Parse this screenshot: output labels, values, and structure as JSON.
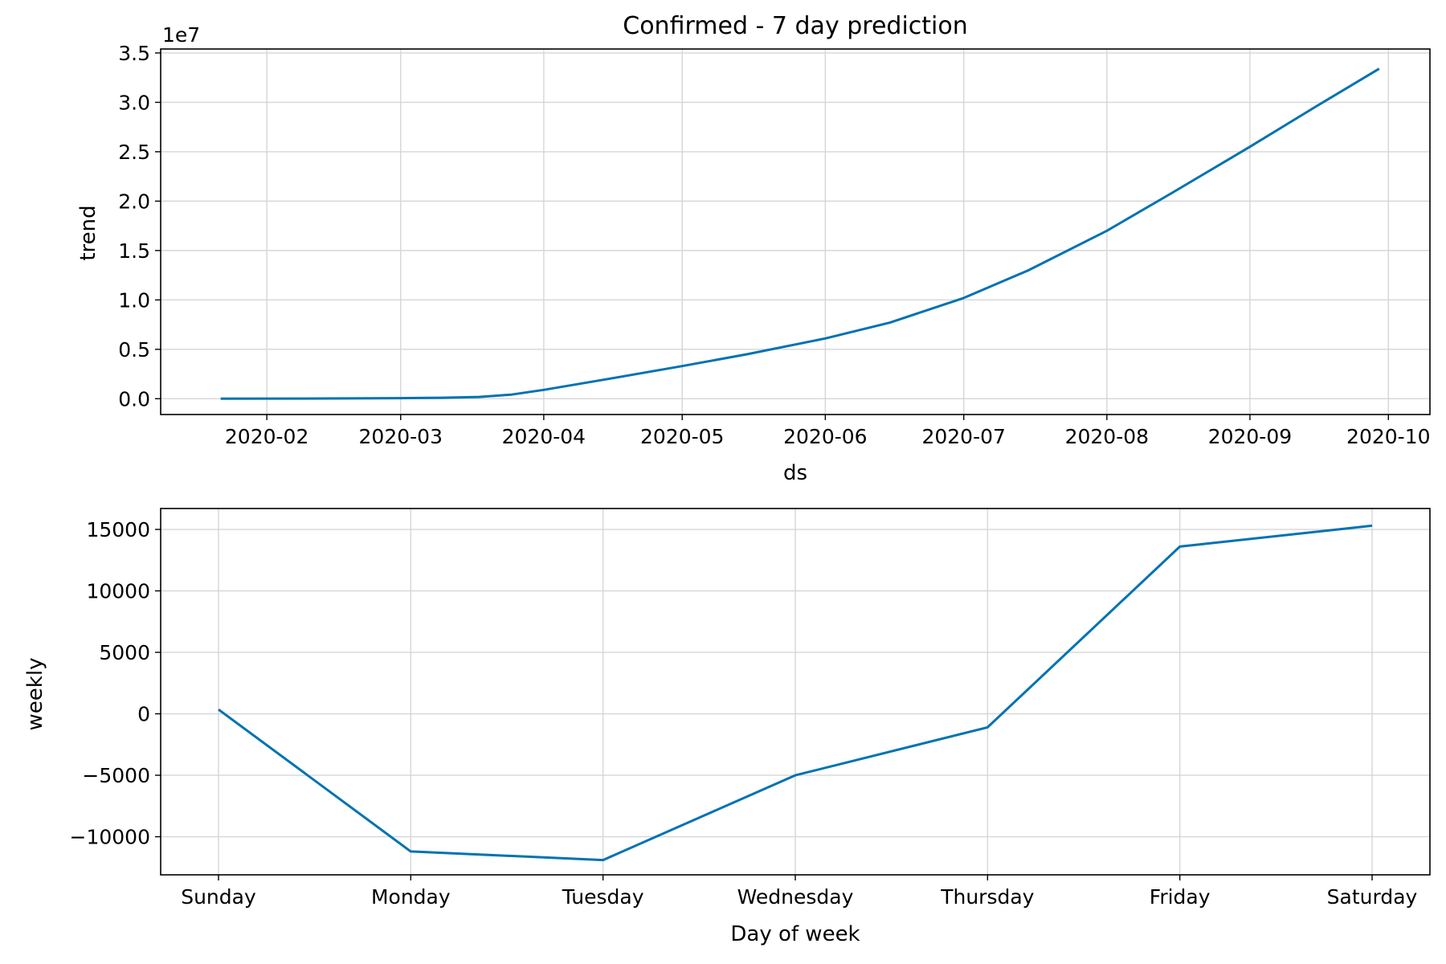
{
  "chart_data": [
    {
      "type": "line",
      "title": "Confirmed - 7 day prediction",
      "xlabel": "ds",
      "ylabel": "trend",
      "x_scale": "time",
      "x_tick_labels": [
        "2020-02",
        "2020-03",
        "2020-04",
        "2020-05",
        "2020-06",
        "2020-07",
        "2020-08",
        "2020-09",
        "2020-10"
      ],
      "x_tick_values": [
        "2020-02-01",
        "2020-03-01",
        "2020-04-01",
        "2020-05-01",
        "2020-06-01",
        "2020-07-01",
        "2020-08-01",
        "2020-09-01",
        "2020-10-01"
      ],
      "xlim": [
        "2020-01-09",
        "2020-10-10"
      ],
      "y_tick_labels": [
        "0.0",
        "0.5",
        "1.0",
        "1.5",
        "2.0",
        "2.5",
        "3.0",
        "3.5"
      ],
      "y_tick_values": [
        0,
        5000000,
        10000000,
        15000000,
        20000000,
        25000000,
        30000000,
        35000000
      ],
      "y_offset_label": "1e7",
      "ylim": [
        -1600000,
        35400000
      ],
      "grid": true,
      "color": "#0072b2",
      "series": [
        {
          "x": [
            "2020-01-22",
            "2020-02-15",
            "2020-03-01",
            "2020-03-10",
            "2020-03-18",
            "2020-03-25",
            "2020-04-01",
            "2020-04-15",
            "2020-05-01",
            "2020-05-15",
            "2020-06-01",
            "2020-06-15",
            "2020-07-01",
            "2020-07-15",
            "2020-08-01",
            "2020-08-15",
            "2020-09-01",
            "2020-09-15",
            "2020-09-29"
          ],
          "y": [
            0,
            25000,
            60000,
            100000,
            180000,
            420000,
            900000,
            2000000,
            3300000,
            4500000,
            6100000,
            7700000,
            10200000,
            13000000,
            17000000,
            20800000,
            25500000,
            29500000,
            33400000
          ]
        }
      ]
    },
    {
      "type": "line",
      "title": "",
      "xlabel": "Day of week",
      "ylabel": "weekly",
      "categories": [
        "Sunday",
        "Monday",
        "Tuesday",
        "Wednesday",
        "Thursday",
        "Friday",
        "Saturday"
      ],
      "y_tick_labels": [
        "−10000",
        "−5000",
        "0",
        "5000",
        "10000",
        "15000"
      ],
      "y_tick_values": [
        -10000,
        -5000,
        0,
        5000,
        10000,
        15000
      ],
      "ylim": [
        -13100,
        16700
      ],
      "grid": true,
      "color": "#0072b2",
      "series": [
        {
          "values": [
            350,
            -11200,
            -11900,
            -5000,
            -1100,
            13600,
            15300
          ]
        }
      ]
    }
  ]
}
